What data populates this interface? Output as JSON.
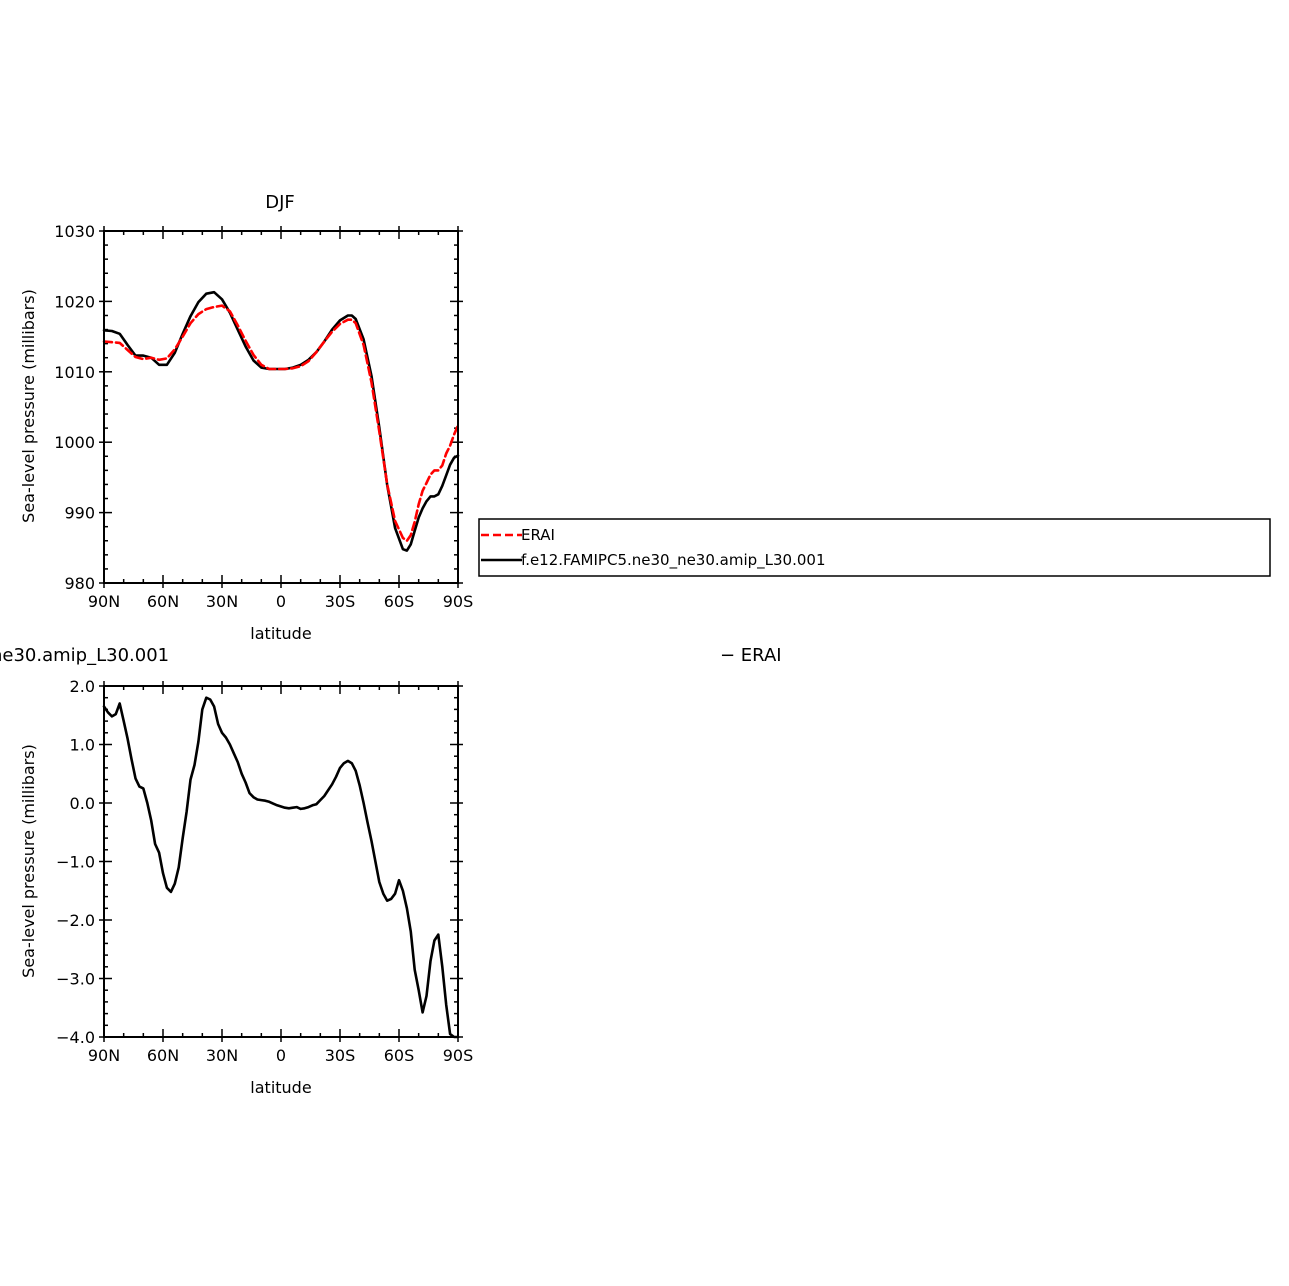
{
  "chart_data": [
    {
      "type": "line",
      "title": "DJF",
      "xlabel": "latitude",
      "ylabel": "Sea-level pressure (millibars)",
      "xlim": [
        90,
        -90
      ],
      "ylim": [
        980,
        1030
      ],
      "xticks": [
        90,
        60,
        30,
        0,
        -30,
        -60,
        -90
      ],
      "xtick_labels": [
        "90N",
        "60N",
        "30N",
        "0",
        "30S",
        "60S",
        "90S"
      ],
      "yticks": [
        980,
        990,
        1000,
        1010,
        1020,
        1030
      ],
      "ytick_labels": [
        "980",
        "990",
        "1000",
        "1010",
        "1020",
        "1030"
      ],
      "legend": {
        "placement": "right",
        "labels": [
          "ERAI",
          "f.e12.FAMIPC5.ne30_ne30.amip_L30.001"
        ]
      },
      "series": [
        {
          "name": "ERAI",
          "color": "#ff0000",
          "dashed": true,
          "x": [
            90,
            82,
            78,
            74,
            70,
            66,
            62,
            58,
            54,
            50,
            46,
            42,
            38,
            34,
            30,
            26,
            22,
            18,
            14,
            10,
            6,
            2,
            -2,
            -6,
            -10,
            -14,
            -18,
            -22,
            -26,
            -30,
            -34,
            -36,
            -38,
            -42,
            -46,
            -50,
            -54,
            -58,
            -62,
            -64,
            -66,
            -68,
            -70,
            -72,
            -74,
            -76,
            -78,
            -80,
            -82,
            -84,
            -86,
            -88,
            -90
          ],
          "y": [
            1014.3,
            1014.1,
            1013.1,
            1012.1,
            1011.8,
            1012.0,
            1011.7,
            1011.9,
            1013.2,
            1015.0,
            1016.9,
            1018.2,
            1018.9,
            1019.2,
            1019.4,
            1018.6,
            1016.6,
            1014.4,
            1012.4,
            1011.0,
            1010.4,
            1010.4,
            1010.4,
            1010.5,
            1010.8,
            1011.5,
            1012.8,
            1014.3,
            1015.7,
            1016.8,
            1017.4,
            1017.4,
            1016.9,
            1013.8,
            1008.5,
            1001.5,
            994.0,
            988.8,
            986.4,
            986.0,
            986.8,
            988.7,
            991.2,
            993.1,
            994.2,
            995.4,
            996.0,
            996.0,
            996.7,
            998.4,
            999.5,
            1001.1,
            1002.4
          ]
        },
        {
          "name": "f.e12.FAMIPC5.ne30_ne30.amip_L30.001",
          "color": "#000000",
          "dashed": false,
          "x": [
            90,
            86,
            82,
            78,
            74,
            70,
            66,
            62,
            58,
            54,
            50,
            46,
            42,
            38,
            34,
            30,
            26,
            22,
            18,
            14,
            10,
            6,
            2,
            -2,
            -6,
            -10,
            -14,
            -18,
            -22,
            -26,
            -30,
            -34,
            -36,
            -38,
            -42,
            -46,
            -50,
            -54,
            -58,
            -62,
            -64,
            -66,
            -68,
            -70,
            -72,
            -74,
            -76,
            -78,
            -80,
            -82,
            -84,
            -86,
            -88,
            -90
          ],
          "y": [
            1015.9,
            1015.8,
            1015.4,
            1013.8,
            1012.3,
            1012.3,
            1012.0,
            1011.0,
            1011.0,
            1012.7,
            1015.4,
            1017.9,
            1019.9,
            1021.1,
            1021.3,
            1020.3,
            1018.4,
            1016.0,
            1013.6,
            1011.6,
            1010.6,
            1010.4,
            1010.4,
            1010.4,
            1010.6,
            1011.0,
            1011.7,
            1012.8,
            1014.3,
            1016.0,
            1017.3,
            1018.0,
            1018.0,
            1017.5,
            1014.6,
            1009.4,
            1002.1,
            993.9,
            987.8,
            984.8,
            984.6,
            985.5,
            987.4,
            989.3,
            990.6,
            991.6,
            992.3,
            992.3,
            992.6,
            993.8,
            995.3,
            996.8,
            997.8,
            998.1
          ]
        }
      ]
    },
    {
      "type": "line",
      "title": "ne30.amip_L30.001",
      "title_right": "− ERAI",
      "xlabel": "latitude",
      "ylabel": "Sea-level pressure (millibars)",
      "xlim": [
        90,
        -90
      ],
      "ylim": [
        -4.0,
        2.0
      ],
      "xticks": [
        90,
        60,
        30,
        0,
        -30,
        -60,
        -90
      ],
      "xtick_labels": [
        "90N",
        "60N",
        "30N",
        "0",
        "30S",
        "60S",
        "90S"
      ],
      "yticks": [
        -4.0,
        -3.0,
        -2.0,
        -1.0,
        0.0,
        1.0,
        2.0
      ],
      "ytick_labels": [
        "−4.0",
        "−3.0",
        "−2.0",
        "−1.0",
        "0.0",
        "1.0",
        "2.0"
      ],
      "series": [
        {
          "color": "#000000",
          "dashed": false,
          "x": [
            90,
            88,
            86,
            84,
            82,
            80,
            78,
            76,
            74,
            72,
            70,
            68,
            66,
            64,
            62,
            60,
            58,
            56,
            54,
            52,
            50,
            48,
            46,
            44,
            42,
            40,
            38,
            36,
            34,
            32,
            30,
            28,
            26,
            24,
            22,
            20,
            18,
            16,
            14,
            12,
            10,
            8,
            6,
            4,
            2,
            0,
            -2,
            -4,
            -6,
            -8,
            -10,
            -12,
            -14,
            -16,
            -18,
            -20,
            -22,
            -24,
            -26,
            -28,
            -30,
            -32,
            -34,
            -36,
            -38,
            -40,
            -42,
            -44,
            -46,
            -48,
            -50,
            -52,
            -54,
            -56,
            -58,
            -60,
            -62,
            -64,
            -66,
            -68,
            -70,
            -72,
            -74,
            -76,
            -78,
            -80,
            -82,
            -84,
            -86,
            -88,
            -90
          ],
          "y": [
            1.65,
            1.55,
            1.48,
            1.52,
            1.7,
            1.4,
            1.1,
            0.75,
            0.42,
            0.28,
            0.25,
            0.0,
            -0.3,
            -0.7,
            -0.85,
            -1.2,
            -1.45,
            -1.52,
            -1.38,
            -1.1,
            -0.6,
            -0.15,
            0.4,
            0.65,
            1.05,
            1.6,
            1.8,
            1.77,
            1.65,
            1.35,
            1.2,
            1.12,
            1.0,
            0.85,
            0.7,
            0.5,
            0.35,
            0.17,
            0.1,
            0.06,
            0.05,
            0.04,
            0.02,
            -0.01,
            -0.04,
            -0.06,
            -0.08,
            -0.09,
            -0.08,
            -0.07,
            -0.1,
            -0.09,
            -0.07,
            -0.04,
            -0.02,
            0.05,
            0.12,
            0.22,
            0.32,
            0.45,
            0.6,
            0.68,
            0.72,
            0.68,
            0.55,
            0.3,
            0.0,
            -0.33,
            -0.65,
            -1.0,
            -1.35,
            -1.55,
            -1.67,
            -1.64,
            -1.55,
            -1.32,
            -1.5,
            -1.8,
            -2.2,
            -2.85,
            -3.2,
            -3.58,
            -3.3,
            -2.7,
            -2.35,
            -2.25,
            -2.8,
            -3.45,
            -3.95,
            -4.0,
            -4.0
          ]
        }
      ]
    }
  ]
}
